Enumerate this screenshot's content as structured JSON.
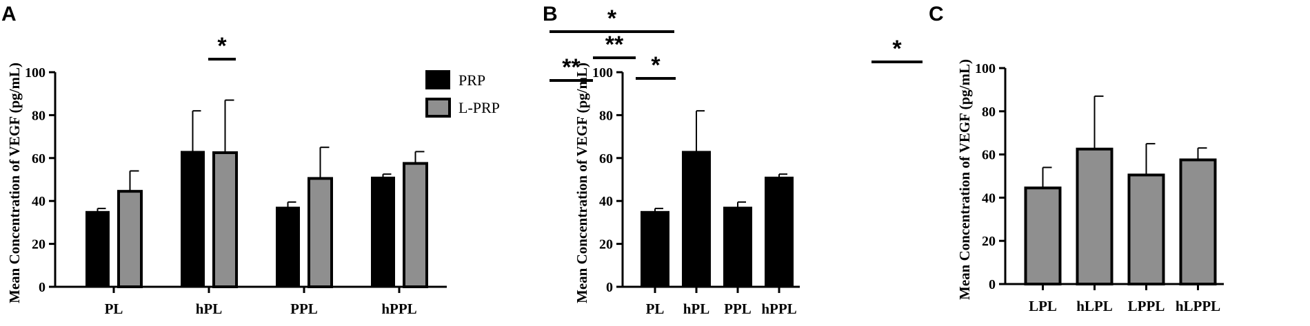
{
  "colors": {
    "prp": "#000000",
    "lprp": "#8f8f8f",
    "axis": "#000000"
  },
  "legend": {
    "position": "right-of-panel-A",
    "items": [
      "PRP",
      "L-PRP"
    ]
  },
  "chart_data": [
    {
      "panel": "A",
      "type": "bar",
      "ylabel": "Mean Concentration of VEGF (pg/mL)",
      "ylim": [
        0,
        100
      ],
      "yticks": [
        "0",
        "20",
        "40",
        "60",
        "80",
        "100"
      ],
      "categories": [
        "PL",
        "hPL",
        "PPL",
        "hPPL"
      ],
      "series": [
        {
          "name": "PRP",
          "values": [
            35,
            63,
            37,
            51
          ],
          "errors": [
            1.5,
            19,
            2.5,
            1.5
          ]
        },
        {
          "name": "L-PRP",
          "values": [
            44.5,
            62.5,
            50.5,
            57.5
          ],
          "errors": [
            9.5,
            24.5,
            14.5,
            5.5
          ]
        }
      ],
      "significance": [
        {
          "label": "*",
          "from": [
            2,
            0
          ],
          "to": [
            2,
            1
          ]
        }
      ]
    },
    {
      "panel": "B",
      "type": "bar",
      "ylabel": "Mean Concentration of VEGF (pg/mL)",
      "ylim": [
        0,
        100
      ],
      "yticks": [
        "0",
        "20",
        "40",
        "60",
        "80",
        "100"
      ],
      "categories": [
        "PL",
        "hPL",
        "PPL",
        "hPPL"
      ],
      "series": [
        {
          "values": [
            35,
            63,
            37,
            51
          ],
          "errors": [
            1.5,
            19,
            2.5,
            1.5
          ]
        }
      ],
      "significance": [
        {
          "label": "*",
          "from": 0,
          "to": 3
        },
        {
          "label": "**",
          "from": 0,
          "to": 1
        },
        {
          "label": "**",
          "from": 1,
          "to": 2
        },
        {
          "label": "*",
          "from": 2,
          "to": 3
        }
      ]
    },
    {
      "panel": "C",
      "type": "bar",
      "ylabel": "Mean Concentration of VEGF (pg/mL)",
      "ylim": [
        0,
        100
      ],
      "yticks": [
        "0",
        "20",
        "40",
        "60",
        "80",
        "100"
      ],
      "categories": [
        "LPL",
        "hLPL",
        "LPPL",
        "hLPPL"
      ],
      "series": [
        {
          "values": [
            44.5,
            62.5,
            50.5,
            57.5
          ],
          "errors": [
            9.5,
            24.5,
            14.5,
            5.5
          ]
        }
      ],
      "significance": [
        {
          "label": "*",
          "from": 0,
          "to": 1
        }
      ]
    }
  ]
}
